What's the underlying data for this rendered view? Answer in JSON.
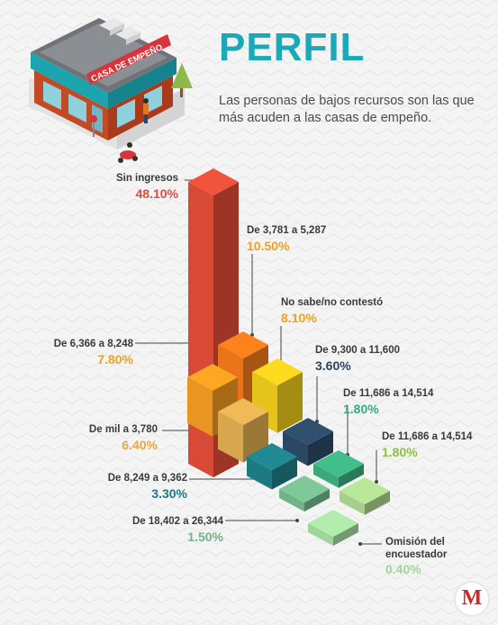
{
  "header": {
    "title": "PERFIL",
    "subtitle": "Las personas de bajos recursos son las que más acuden a las casas de empeño."
  },
  "illustration": {
    "sign_text": "CASA DE EMPEÑO"
  },
  "logo": {
    "letter": "M",
    "color": "#d3262b"
  },
  "colors": {
    "title": "#1aa9b8",
    "background": "#f4f4f4"
  },
  "chart_data": {
    "type": "bar",
    "title": "PERFIL",
    "categories": [
      "Sin ingresos",
      "De 3,781 a 5,287",
      "No sabe/no contestó",
      "De 6,366 a 8,248",
      "De 9,300 a 11,600",
      "De mil a 3,780",
      "De 11,686 a 14,514",
      "De 11,686 a 14,514",
      "De 8,249 a 9,362",
      "De 18,402 a 26,344",
      "Omisión del encuestador"
    ],
    "labels": [
      "48.10%",
      "10.50%",
      "8.10%",
      "7.80%",
      "3.60%",
      "6.40%",
      "1.80%",
      "1.80%",
      "3.30%",
      "1.50%",
      "0.40%"
    ],
    "values": [
      48.1,
      10.5,
      8.1,
      7.8,
      3.6,
      6.4,
      1.8,
      1.8,
      3.3,
      1.5,
      0.4
    ],
    "colors": [
      "#d84a35",
      "#e9741a",
      "#e5c31b",
      "#e89521",
      "#2b4763",
      "#d7a64d",
      "#3aaa7b",
      "#a5cf8a",
      "#1d7a83",
      "#71b389",
      "#9fd49b"
    ],
    "value_colors": [
      "#e34b3f",
      "#f3a118",
      "#f3a118",
      "#f3a118",
      "#2b4763",
      "#e9a64b",
      "#3aaa7b",
      "#8bbf3f",
      "#1d7a83",
      "#71b389",
      "#9fd49b"
    ]
  }
}
